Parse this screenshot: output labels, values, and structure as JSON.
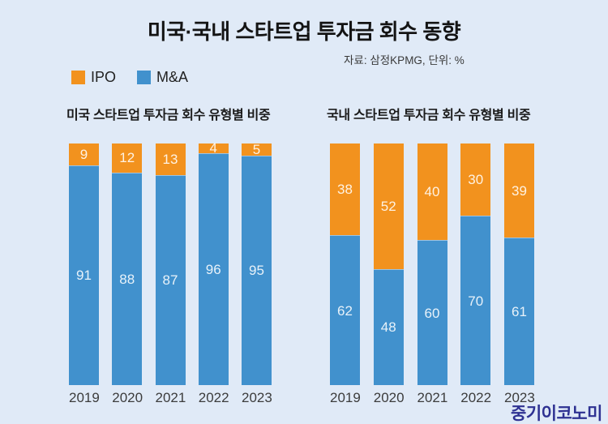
{
  "header": {
    "title": "미국·국내 스타트업 투자금 회수 동향",
    "source": "자료: 삼정KPMG, 단위: %"
  },
  "legend": [
    {
      "label": "IPO",
      "color": "#F2921E"
    },
    {
      "label": "M&A",
      "color": "#4191CD"
    }
  ],
  "chart_data": [
    {
      "type": "bar",
      "stacked": true,
      "title": "미국 스타트업 투자금 회수 유형별 비중",
      "categories": [
        "2019",
        "2020",
        "2021",
        "2022",
        "2023"
      ],
      "series": [
        {
          "name": "IPO",
          "color": "#F2921E",
          "values": [
            9,
            12,
            13,
            4,
            5
          ]
        },
        {
          "name": "M&A",
          "color": "#4191CD",
          "values": [
            91,
            88,
            87,
            96,
            95
          ]
        }
      ],
      "ylim": [
        0,
        100
      ],
      "unit": "%",
      "value_labels": true,
      "legend_position": "top-left",
      "grid": false
    },
    {
      "type": "bar",
      "stacked": true,
      "title": "국내 스타트업 투자금 회수 유형별 비중",
      "categories": [
        "2019",
        "2020",
        "2021",
        "2022",
        "2023"
      ],
      "series": [
        {
          "name": "IPO",
          "color": "#F2921E",
          "values": [
            38,
            52,
            40,
            30,
            39
          ]
        },
        {
          "name": "M&A",
          "color": "#4191CD",
          "values": [
            62,
            48,
            60,
            70,
            61
          ]
        }
      ],
      "ylim": [
        0,
        100
      ],
      "unit": "%",
      "value_labels": true,
      "grid": false
    }
  ],
  "footer": {
    "logo": "중기이코노미"
  },
  "colors": {
    "background": "#E0EAF7",
    "ipo": "#F2921E",
    "mna": "#4191CD",
    "logo": "#2E3192",
    "title_text": "#141414",
    "axis_text": "#3C3C3C",
    "value_label": "#FFFFFF"
  }
}
